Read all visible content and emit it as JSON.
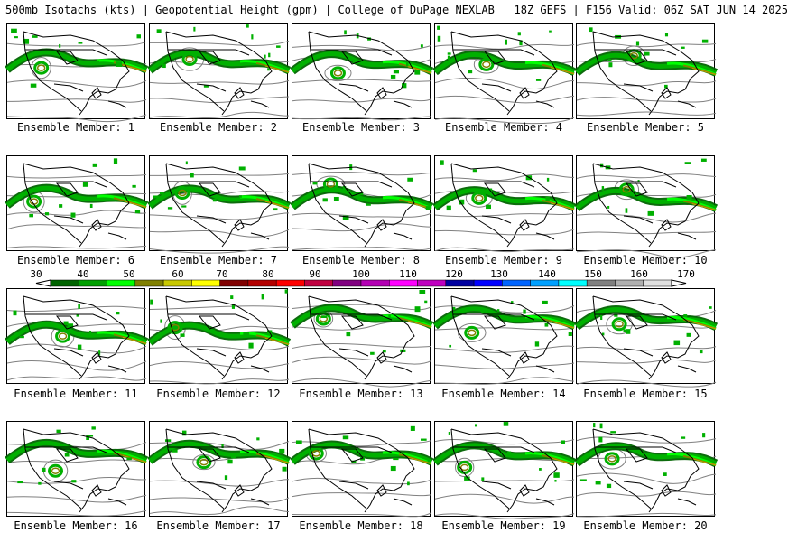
{
  "title": "500mb Isotachs (kts) | Geopotential Height (gpm) | College of DuPage NEXLAB   18Z GEFS | F156 Valid: 06Z SAT JUN 14 2025",
  "panels": [
    {
      "label": "Ensemble Member: 1"
    },
    {
      "label": "Ensemble Member: 2"
    },
    {
      "label": "Ensemble Member: 3"
    },
    {
      "label": "Ensemble Member: 4"
    },
    {
      "label": "Ensemble Member: 5"
    },
    {
      "label": "Ensemble Member: 6"
    },
    {
      "label": "Ensemble Member: 7"
    },
    {
      "label": "Ensemble Member: 8"
    },
    {
      "label": "Ensemble Member: 9"
    },
    {
      "label": "Ensemble Member: 10"
    },
    {
      "label": "Ensemble Member: 11"
    },
    {
      "label": "Ensemble Member: 12"
    },
    {
      "label": "Ensemble Member: 13"
    },
    {
      "label": "Ensemble Member: 14"
    },
    {
      "label": "Ensemble Member: 15"
    },
    {
      "label": "Ensemble Member: 16"
    },
    {
      "label": "Ensemble Member: 17"
    },
    {
      "label": "Ensemble Member: 18"
    },
    {
      "label": "Ensemble Member: 19"
    },
    {
      "label": "Ensemble Member: 20"
    }
  ],
  "colorbar": {
    "ticks": [
      "30",
      "40",
      "50",
      "60",
      "70",
      "80",
      "90",
      "100",
      "110",
      "120",
      "130",
      "140",
      "150",
      "160",
      "170"
    ],
    "colors": [
      "#006400",
      "#00a000",
      "#00ff00",
      "#808000",
      "#c8c800",
      "#ffff00",
      "#800000",
      "#b40000",
      "#ff0000",
      "#c00040",
      "#800080",
      "#b400b4",
      "#ff00ff",
      "#c000c0",
      "#0000a0",
      "#0000ff",
      "#0064ff",
      "#00a0ff",
      "#00ffff",
      "#808080",
      "#b0b0b0",
      "#e0e0e0"
    ]
  },
  "colors": {
    "jet_dark": "#006400",
    "jet_mid": "#00b000",
    "jet_light": "#00ff00",
    "jet_core": "#808000",
    "jet_max": "#c0a000",
    "height_contour": "#808080",
    "coast": "#000000"
  }
}
